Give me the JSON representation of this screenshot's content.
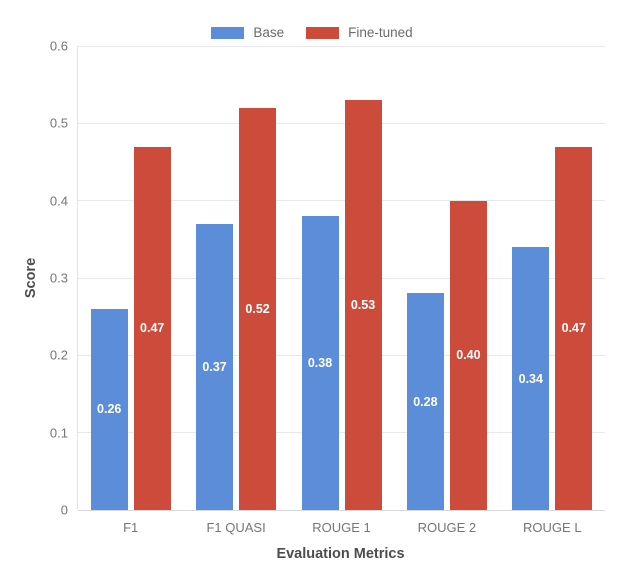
{
  "chart_data": {
    "type": "bar",
    "title": "",
    "categories": [
      "F1",
      "F1 QUASI",
      "ROUGE 1",
      "ROUGE 2",
      "ROUGE L"
    ],
    "series": [
      {
        "name": "Base",
        "color": "#5b8dd9",
        "values": [
          0.26,
          0.37,
          0.38,
          0.28,
          0.34
        ]
      },
      {
        "name": "Fine-tuned",
        "color": "#cc4b3b",
        "values": [
          0.47,
          0.52,
          0.53,
          0.4,
          0.47
        ]
      }
    ],
    "xlabel": "Evaluation Metrics",
    "ylabel": "Score",
    "ylim": [
      0,
      0.6
    ],
    "yticks": [
      0,
      0.1,
      0.2,
      0.3,
      0.4,
      0.5,
      0.6
    ],
    "grid": true,
    "legend_position": "top",
    "value_labels": true,
    "value_label_color": "#ffffff",
    "tick_label_color": "#757575",
    "axis_title_color": "#4d4d4d",
    "gridline_color": "#e8e8e8",
    "background_color": "#ffffff"
  }
}
